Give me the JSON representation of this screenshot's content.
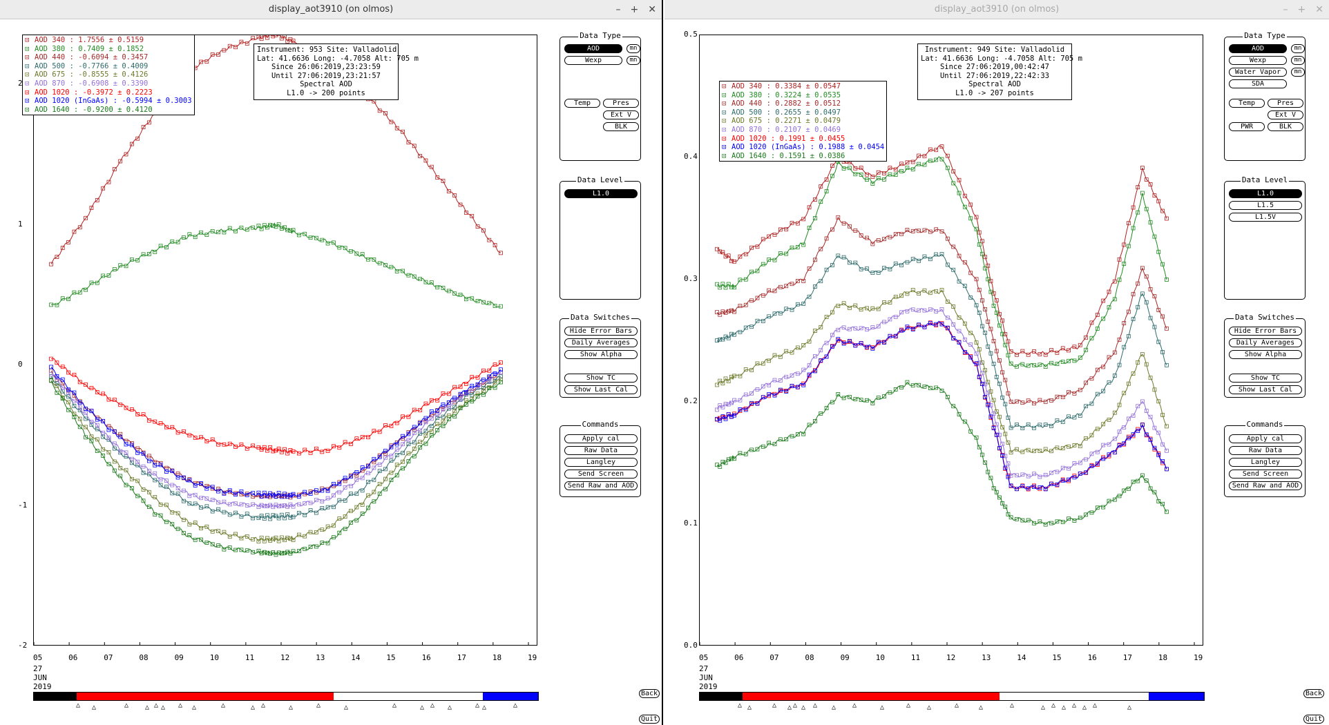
{
  "colors": {
    "c340": "#b22222",
    "c380": "#228b22",
    "c440": "#a52a2a",
    "c500": "#2e6b6b",
    "c675": "#6b7a2a",
    "c870": "#9370db",
    "c1020": "#ff0000",
    "c1020ig": "#0000ff",
    "c1640": "#1a7a1a"
  },
  "left": {
    "title": "display_aot3910 (on olmos)",
    "window_buttons": [
      "–",
      "+",
      "✕"
    ],
    "info": [
      "Instrument: 953 Site: Valladolid",
      "Lat: 41.6636 Long: -4.7058 Alt: 705 m",
      "Since 26:06:2019,23:23:59",
      "Until 27:06:2019,23:21:57",
      "Spectral AOD",
      "L1.0 -> 200 points"
    ],
    "legend": [
      {
        "label": "AOD 340  : 1.7556 ± 0.5159",
        "color": "#b22222"
      },
      {
        "label": "AOD 380  : 0.7409 ± 0.1852",
        "color": "#228b22"
      },
      {
        "label": "AOD 440  : -0.6094 ± 0.3457",
        "color": "#a52a2a"
      },
      {
        "label": "AOD 500  : -0.7766 ± 0.4009",
        "color": "#2e6b6b"
      },
      {
        "label": "AOD 675  : -0.8555 ± 0.4126",
        "color": "#6b7a2a"
      },
      {
        "label": "AOD 870  : -0.6908 ± 0.3390",
        "color": "#9370db"
      },
      {
        "label": "AOD 1020  : -0.3972 ± 0.2223",
        "color": "#ff0000"
      },
      {
        "label": "AOD 1020 (InGaAs)  : -0.5994 ± 0.3003",
        "color": "#0000ff"
      },
      {
        "label": "AOD 1640  : -0.9200 ± 0.4120",
        "color": "#1a7a1a"
      }
    ],
    "yticks": [
      "2",
      "1",
      "0",
      "-1",
      "-2"
    ],
    "xticks": [
      "05",
      "06",
      "07",
      "08",
      "09",
      "10",
      "11",
      "12",
      "13",
      "14",
      "15",
      "16",
      "17",
      "18",
      "19"
    ],
    "date_label": [
      "27",
      "JUN",
      "2019"
    ],
    "data_type": {
      "title": "Data Type",
      "buttons": [
        "AOD",
        "Wexp",
        "Temp",
        "Pres",
        "Ext V",
        "BLK"
      ],
      "small": [
        "mn",
        "mn"
      ]
    },
    "data_level": {
      "title": "Data Level",
      "buttons": [
        "L1.0"
      ]
    },
    "data_switches": {
      "title": "Data Switches",
      "buttons": [
        "Hide Error Bars",
        "Daily Averages",
        "Show Alpha",
        "Show TC",
        "Show Last Cal"
      ]
    },
    "commands": {
      "title": "Commands",
      "buttons": [
        "Apply cal",
        "Raw Data",
        "Langley",
        "Send Screen",
        "Send Raw and AOD"
      ]
    },
    "back": "Back",
    "quit": "Quit"
  },
  "right": {
    "title": "display_aot3910 (on olmos)",
    "window_buttons": [
      "–",
      "+",
      "✕"
    ],
    "info": [
      "Instrument: 949 Site: Valladolid",
      "Lat: 41.6636 Long: -4.7058 Alt: 705 m",
      "Since 27:06:2019,00:42:47",
      "Until 27:06:2019,22:42:33",
      "Spectral AOD",
      "L1.0 -> 207 points"
    ],
    "legend": [
      {
        "label": "AOD 340  : 0.3384 ± 0.0547",
        "color": "#b22222"
      },
      {
        "label": "AOD 380  : 0.3224 ± 0.0535",
        "color": "#228b22"
      },
      {
        "label": "AOD 440  : 0.2882 ± 0.0512",
        "color": "#a52a2a"
      },
      {
        "label": "AOD 500  : 0.2655 ± 0.0497",
        "color": "#2e6b6b"
      },
      {
        "label": "AOD 675  : 0.2271 ± 0.0479",
        "color": "#6b7a2a"
      },
      {
        "label": "AOD 870  : 0.2107 ± 0.0469",
        "color": "#9370db"
      },
      {
        "label": "AOD 1020  : 0.1991 ± 0.0455",
        "color": "#ff0000"
      },
      {
        "label": "AOD 1020 (InGaAs)  : 0.1988 ± 0.0454",
        "color": "#0000ff"
      },
      {
        "label": "AOD 1640  : 0.1591 ± 0.0386",
        "color": "#1a7a1a"
      }
    ],
    "yticks": [
      "0.5",
      "0.4",
      "0.3",
      "0.2",
      "0.1",
      "0.0"
    ],
    "xticks": [
      "05",
      "06",
      "07",
      "08",
      "09",
      "10",
      "11",
      "12",
      "13",
      "14",
      "15",
      "16",
      "17",
      "18",
      "19"
    ],
    "date_label": [
      "27",
      "JUN",
      "2019"
    ],
    "data_type": {
      "title": "Data Type",
      "buttons": [
        "AOD",
        "Wexp",
        "Water Vapor",
        "SDA",
        "Temp",
        "Pres",
        "Ext V",
        "PWR",
        "BLK"
      ],
      "small": [
        "mn",
        "mn",
        "mn"
      ]
    },
    "data_level": {
      "title": "Data Level",
      "buttons": [
        "L1.0",
        "L1.5",
        "L1.5V"
      ]
    },
    "data_switches": {
      "title": "Data Switches",
      "buttons": [
        "Hide Error Bars",
        "Daily Averages",
        "Show Alpha",
        "Show TC",
        "Show Last Cal"
      ]
    },
    "commands": {
      "title": "Commands",
      "buttons": [
        "Apply cal",
        "Raw Data",
        "Langley",
        "Send Screen",
        "Send Raw and AOD"
      ]
    },
    "back": "Back",
    "quit": "Quit"
  },
  "chart_data": [
    {
      "type": "line",
      "title": "Spectral AOD",
      "xlabel": "",
      "ylabel": "",
      "ylim": [
        -2,
        2.35
      ],
      "x": [
        5.5,
        6.5,
        7.5,
        8.5,
        9.5,
        10.5,
        11.5,
        12.0,
        12.5,
        13.5,
        14.5,
        15.5,
        16.5,
        17.5,
        18.5
      ],
      "series": [
        {
          "name": "AOD 340",
          "values": [
            0.72,
            1.05,
            1.45,
            1.8,
            2.1,
            2.25,
            2.33,
            2.36,
            2.3,
            2.15,
            1.95,
            1.7,
            1.4,
            1.1,
            0.8
          ]
        },
        {
          "name": "AOD 380",
          "values": [
            0.42,
            0.55,
            0.7,
            0.82,
            0.92,
            0.96,
            0.98,
            1.0,
            0.95,
            0.88,
            0.78,
            0.68,
            0.58,
            0.48,
            0.42
          ]
        },
        {
          "name": "AOD 440",
          "values": [
            -0.05,
            -0.3,
            -0.5,
            -0.68,
            -0.82,
            -0.9,
            -0.93,
            -0.93,
            -0.93,
            -0.88,
            -0.75,
            -0.55,
            -0.35,
            -0.2,
            -0.05
          ]
        },
        {
          "name": "AOD 500",
          "values": [
            -0.08,
            -0.38,
            -0.62,
            -0.82,
            -0.98,
            -1.05,
            -1.08,
            -1.08,
            -1.07,
            -1.02,
            -0.88,
            -0.65,
            -0.42,
            -0.22,
            -0.08
          ]
        },
        {
          "name": "AOD 675",
          "values": [
            -0.1,
            -0.45,
            -0.72,
            -0.95,
            -1.12,
            -1.2,
            -1.24,
            -1.24,
            -1.23,
            -1.16,
            -0.98,
            -0.72,
            -0.46,
            -0.26,
            -0.1
          ]
        },
        {
          "name": "AOD 870",
          "values": [
            -0.05,
            -0.35,
            -0.6,
            -0.78,
            -0.92,
            -0.98,
            -1.0,
            -1.0,
            -1.0,
            -0.95,
            -0.8,
            -0.6,
            -0.38,
            -0.2,
            -0.05
          ]
        },
        {
          "name": "AOD 1020",
          "values": [
            0.05,
            -0.14,
            -0.28,
            -0.4,
            -0.5,
            -0.56,
            -0.59,
            -0.6,
            -0.62,
            -0.6,
            -0.52,
            -0.4,
            -0.26,
            -0.12,
            0.02
          ]
        },
        {
          "name": "AOD 1020 (InGaAs)",
          "values": [
            -0.02,
            -0.3,
            -0.52,
            -0.7,
            -0.83,
            -0.9,
            -0.92,
            -0.92,
            -0.93,
            -0.88,
            -0.74,
            -0.55,
            -0.34,
            -0.18,
            -0.03
          ]
        },
        {
          "name": "AOD 1640",
          "values": [
            -0.12,
            -0.5,
            -0.8,
            -1.05,
            -1.22,
            -1.3,
            -1.33,
            -1.34,
            -1.33,
            -1.26,
            -1.06,
            -0.78,
            -0.5,
            -0.28,
            -0.12
          ]
        }
      ]
    },
    {
      "type": "line",
      "title": "Spectral AOD",
      "xlabel": "",
      "ylabel": "",
      "ylim": [
        0,
        0.5
      ],
      "x": [
        5.5,
        6.0,
        7.0,
        8.0,
        9.0,
        10.0,
        11.0,
        12.0,
        13.0,
        13.5,
        14.0,
        15.0,
        16.0,
        17.0,
        17.8,
        18.5
      ],
      "series": [
        {
          "name": "AOD 340",
          "values": [
            0.325,
            0.315,
            0.335,
            0.35,
            0.4,
            0.385,
            0.395,
            0.41,
            0.35,
            0.29,
            0.24,
            0.24,
            0.245,
            0.3,
            0.39,
            0.35
          ]
        },
        {
          "name": "AOD 380",
          "values": [
            0.295,
            0.295,
            0.315,
            0.33,
            0.395,
            0.38,
            0.39,
            0.4,
            0.34,
            0.28,
            0.23,
            0.23,
            0.235,
            0.285,
            0.37,
            0.3
          ]
        },
        {
          "name": "AOD 440",
          "values": [
            0.272,
            0.275,
            0.29,
            0.3,
            0.35,
            0.33,
            0.34,
            0.34,
            0.3,
            0.25,
            0.2,
            0.2,
            0.21,
            0.24,
            0.31,
            0.26
          ]
        },
        {
          "name": "AOD 500",
          "values": [
            0.25,
            0.255,
            0.27,
            0.28,
            0.32,
            0.305,
            0.315,
            0.32,
            0.28,
            0.23,
            0.18,
            0.18,
            0.19,
            0.22,
            0.29,
            0.23
          ]
        },
        {
          "name": "AOD 675",
          "values": [
            0.215,
            0.22,
            0.235,
            0.245,
            0.28,
            0.275,
            0.29,
            0.29,
            0.25,
            0.2,
            0.16,
            0.16,
            0.165,
            0.19,
            0.24,
            0.18
          ]
        },
        {
          "name": "AOD 870",
          "values": [
            0.195,
            0.2,
            0.215,
            0.225,
            0.26,
            0.26,
            0.275,
            0.275,
            0.24,
            0.19,
            0.14,
            0.14,
            0.15,
            0.17,
            0.2,
            0.16
          ]
        },
        {
          "name": "AOD 1020",
          "values": [
            0.186,
            0.19,
            0.205,
            0.215,
            0.25,
            0.245,
            0.26,
            0.265,
            0.23,
            0.18,
            0.13,
            0.13,
            0.14,
            0.16,
            0.18,
            0.145
          ]
        },
        {
          "name": "AOD 1020 (InGaAs)",
          "values": [
            0.185,
            0.19,
            0.205,
            0.215,
            0.25,
            0.245,
            0.26,
            0.265,
            0.23,
            0.18,
            0.13,
            0.13,
            0.14,
            0.16,
            0.18,
            0.145
          ]
        },
        {
          "name": "AOD 1640",
          "values": [
            0.147,
            0.155,
            0.165,
            0.175,
            0.205,
            0.2,
            0.215,
            0.21,
            0.17,
            0.13,
            0.105,
            0.1,
            0.105,
            0.12,
            0.14,
            0.11
          ]
        }
      ]
    }
  ]
}
